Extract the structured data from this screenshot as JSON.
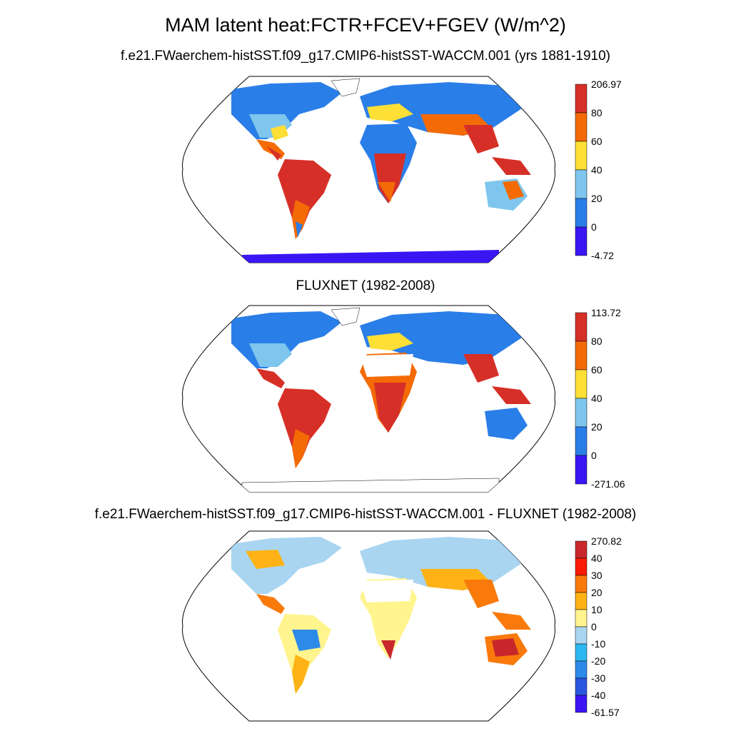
{
  "main_title": "MAM latent heat:FCTR+FCEV+FGEV (W/m^2)",
  "panels": [
    {
      "title": "f.e21.FWaerchem-histSST.f09_g17.CMIP6-histSST-WACCM.001 (yrs 1881-1910)",
      "colorbar": {
        "labels": [
          "206.97",
          "80",
          "60",
          "40",
          "20",
          "0",
          "-4.72"
        ],
        "colors": [
          "#d62f27",
          "#f46b05",
          "#fddf36",
          "#7ec6ed",
          "#2a7ee8",
          "#3a16f5"
        ]
      }
    },
    {
      "title": "FLUXNET (1982-2008)",
      "colorbar": {
        "labels": [
          "113.72",
          "80",
          "60",
          "40",
          "20",
          "0",
          "-271.06"
        ],
        "colors": [
          "#d62f27",
          "#f46b05",
          "#fddf36",
          "#7ec6ed",
          "#2a7ee8",
          "#3a16f5"
        ]
      }
    },
    {
      "title": "f.e21.FWaerchem-histSST.f09_g17.CMIP6-histSST-WACCM.001 - FLUXNET (1982-2008)",
      "colorbar": {
        "labels": [
          "270.82",
          "40",
          "30",
          "20",
          "10",
          "0",
          "-10",
          "-20",
          "-30",
          "-40",
          "-61.57"
        ],
        "colors": [
          "#c8282b",
          "#fa1a06",
          "#f97a0a",
          "#fdb315",
          "#fff48e",
          "#a9d5f1",
          "#2cb8f0",
          "#2d8ae8",
          "#2b56e0",
          "#3b15f4"
        ]
      }
    }
  ]
}
